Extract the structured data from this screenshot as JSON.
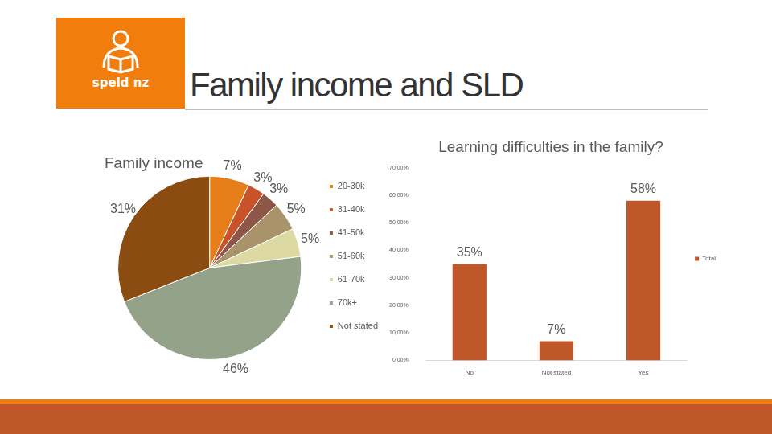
{
  "slide": {
    "title": "Family income and SLD",
    "logo_text": "speld nz"
  },
  "chart_data": [
    {
      "type": "pie",
      "title": "Family income",
      "categories": [
        "20-30k",
        "31-40k",
        "41-50k",
        "51-60k",
        "61-70k",
        "70k+",
        "Not stated"
      ],
      "values": [
        7,
        3,
        3,
        5,
        5,
        46,
        31
      ],
      "value_labels": [
        "7%",
        "3%",
        "3%",
        "5%",
        "5%",
        "46%",
        "31%"
      ],
      "colors": [
        "#e67e1a",
        "#c8522a",
        "#8e5646",
        "#a8936a",
        "#ddd9a2",
        "#95a28a",
        "#8b4c12"
      ],
      "legend": "right",
      "data_labels": true
    },
    {
      "type": "bar",
      "title": "Learning difficulties in the family?",
      "categories": [
        "No",
        "Not stated",
        "Yes"
      ],
      "series": [
        {
          "name": "Total",
          "color": "#c0572b",
          "values": [
            35,
            7,
            58
          ],
          "value_labels": [
            "35%",
            "7%",
            "58%"
          ]
        }
      ],
      "ylim": [
        0,
        70
      ],
      "yticks": [
        {
          "value": 0,
          "label": "0,00%"
        },
        {
          "value": 10,
          "label": "10,00%"
        },
        {
          "value": 20,
          "label": "20,00%"
        },
        {
          "value": 30,
          "label": "30,00%"
        },
        {
          "value": 40,
          "label": "40,00%"
        },
        {
          "value": 50,
          "label": "50,00%"
        },
        {
          "value": 60,
          "label": "60,00%"
        },
        {
          "value": 70,
          "label": "70,00%"
        }
      ],
      "grid": false,
      "legend": "right",
      "data_labels": true
    }
  ]
}
